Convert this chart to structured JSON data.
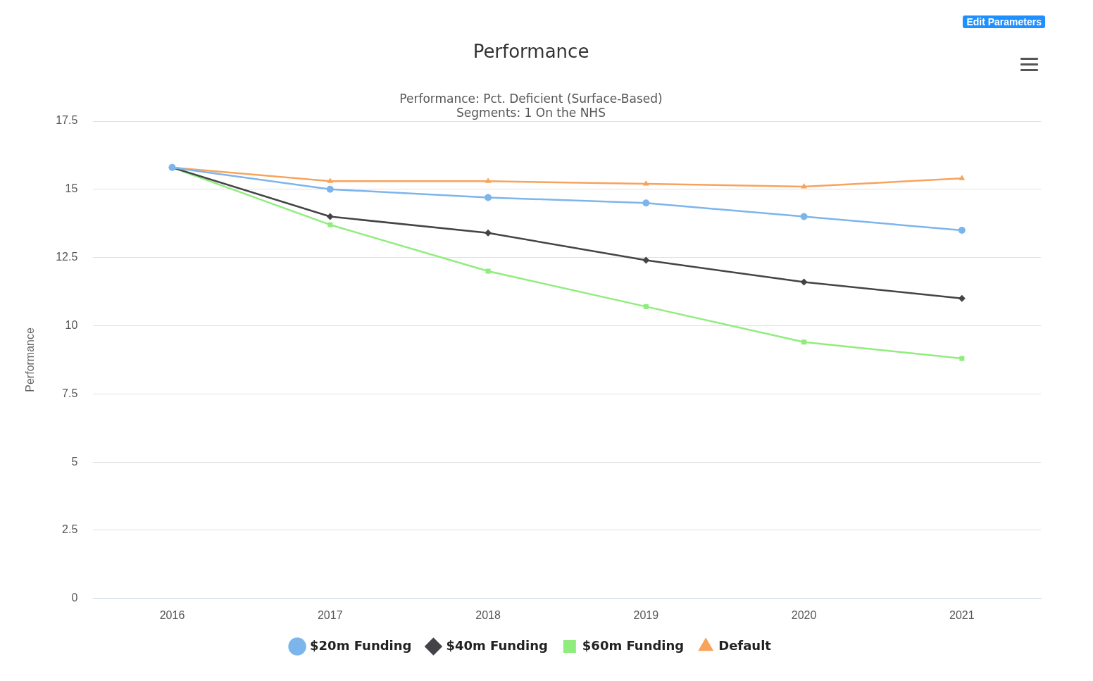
{
  "chart_data": {
    "type": "line",
    "title": "Performance",
    "subtitle": "Performance: Pct. Deficient (Surface-Based)\nSegments: 1 On the NHS",
    "ylabel": "Performance",
    "categories": [
      "2016",
      "2017",
      "2018",
      "2019",
      "2020",
      "2021"
    ],
    "series": [
      {
        "name": "$20m Funding",
        "color": "#7cb5ec",
        "marker": "circle",
        "values": [
          15.8,
          15.0,
          14.7,
          14.5,
          14.0,
          13.5
        ]
      },
      {
        "name": "$40m Funding",
        "color": "#434348",
        "marker": "diamond",
        "values": [
          15.8,
          14.0,
          13.4,
          12.4,
          11.6,
          11.0
        ]
      },
      {
        "name": "$60m Funding",
        "color": "#90ed7d",
        "marker": "square",
        "values": [
          15.8,
          13.7,
          12.0,
          10.7,
          9.4,
          8.8
        ]
      },
      {
        "name": "Default",
        "color": "#f7a35c",
        "marker": "triangle",
        "values": [
          15.8,
          15.3,
          15.3,
          15.2,
          15.1,
          15.4
        ]
      }
    ],
    "ylim": [
      0,
      17.5
    ],
    "yticks": [
      0,
      2.5,
      5,
      7.5,
      10,
      12.5,
      15,
      17.5
    ],
    "grid": "y",
    "legend": "bottom",
    "line_style": "solid",
    "annotations": [
      "Edit Parameters"
    ]
  }
}
